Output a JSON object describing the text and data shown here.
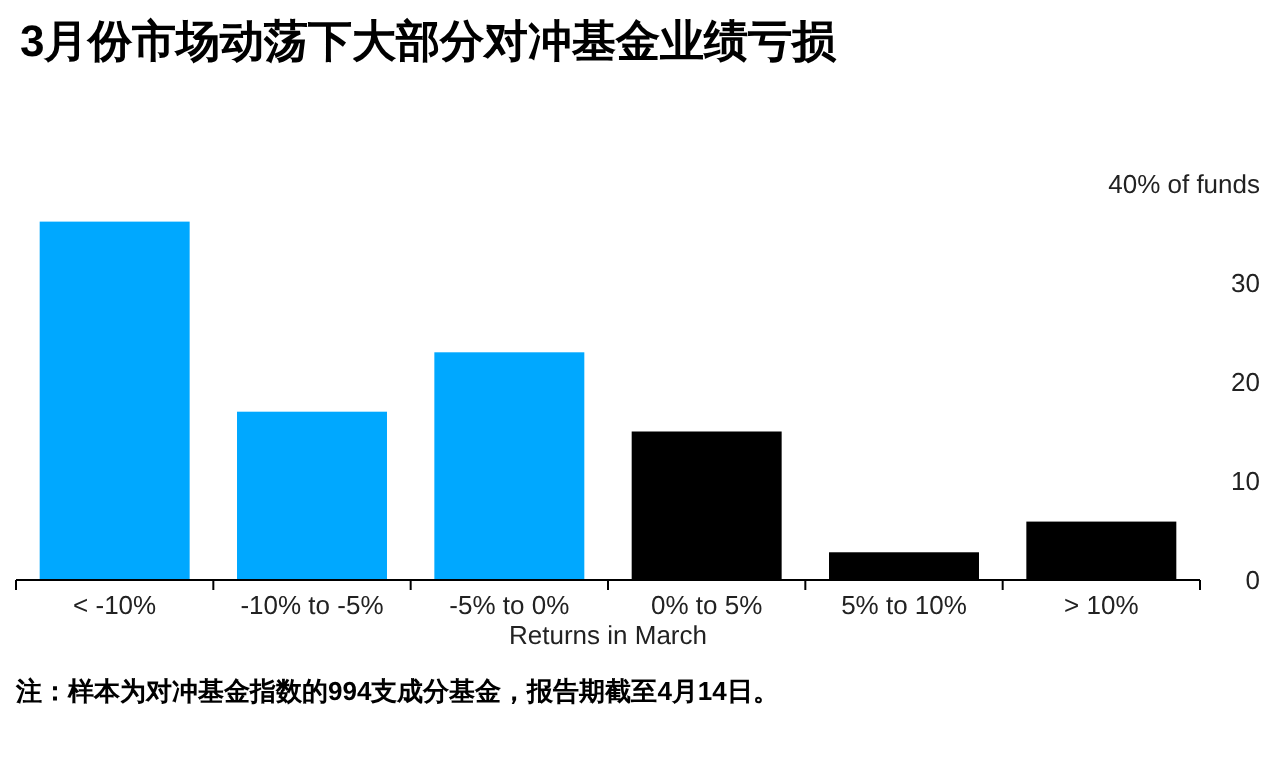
{
  "chart_data": {
    "type": "bar",
    "title": "3月份市场动荡下大部分对冲基金业绩亏损",
    "xlabel": "Returns in March",
    "categories": [
      "< -10%",
      "-10% to -5%",
      "-5% to 0%",
      "0% to 5%",
      "5% to 10%",
      "> 10%"
    ],
    "values": [
      36.2,
      17.0,
      23.0,
      15.0,
      2.8,
      5.9
    ],
    "colors": [
      "#00a8ff",
      "#00a8ff",
      "#00a8ff",
      "#000000",
      "#000000",
      "#000000"
    ],
    "ylim": [
      0,
      40
    ],
    "yticks": [
      0,
      10,
      20,
      30,
      {
        "value": 40,
        "label": "40% of funds"
      }
    ],
    "grid": false,
    "annotations": [
      "注：样本为对冲基金指数的994支成分基金，报告期截至4月14日。"
    ]
  }
}
